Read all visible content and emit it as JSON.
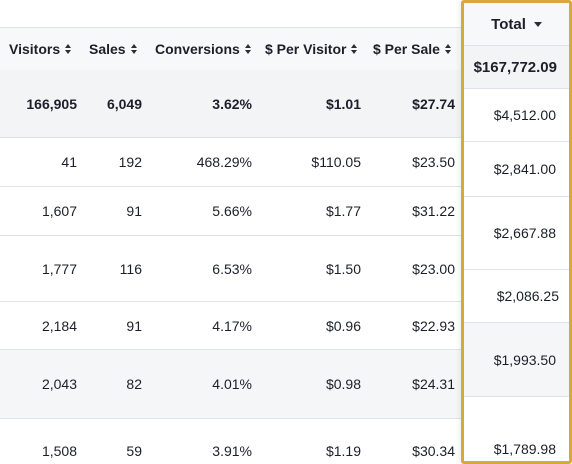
{
  "columns": {
    "visitors": "Visitors",
    "sales": "Sales",
    "conversions": "Conversions",
    "per_visitor": "$ Per Visitor",
    "per_sale": "$ Per Sale",
    "total": "Total"
  },
  "totals": {
    "visitors": "166,905",
    "sales": "6,049",
    "conversions": "3.62%",
    "per_visitor": "$1.01",
    "per_sale": "$27.74",
    "total": "$167,772.09"
  },
  "rows": [
    {
      "visitors": "41",
      "sales": "192",
      "conversions": "468.29%",
      "per_visitor": "$110.05",
      "per_sale": "$23.50",
      "total": "$4,512.00"
    },
    {
      "visitors": "1,607",
      "sales": "91",
      "conversions": "5.66%",
      "per_visitor": "$1.77",
      "per_sale": "$31.22",
      "total": "$2,841.00"
    },
    {
      "visitors": "1,777",
      "sales": "116",
      "conversions": "6.53%",
      "per_visitor": "$1.50",
      "per_sale": "$23.00",
      "total": "$2,667.88"
    },
    {
      "visitors": "2,184",
      "sales": "91",
      "conversions": "4.17%",
      "per_visitor": "$0.96",
      "per_sale": "$22.93",
      "total": "$2,086.25"
    },
    {
      "visitors": "2,043",
      "sales": "82",
      "conversions": "4.01%",
      "per_visitor": "$0.98",
      "per_sale": "$24.31",
      "total": "$1,993.50"
    },
    {
      "visitors": "1,508",
      "sales": "59",
      "conversions": "3.91%",
      "per_visitor": "$1.19",
      "per_sale": "$30.34",
      "total": "$1,789.98"
    }
  ],
  "icons": {
    "sort": "sort-updown-icon",
    "total_sort": "caret-down-icon"
  },
  "colors": {
    "highlight_border": "#d6a93c",
    "header_bg": "#f7f8fa",
    "total_row_bg": "#f3f4f6",
    "row_border": "#dfe2e8"
  }
}
